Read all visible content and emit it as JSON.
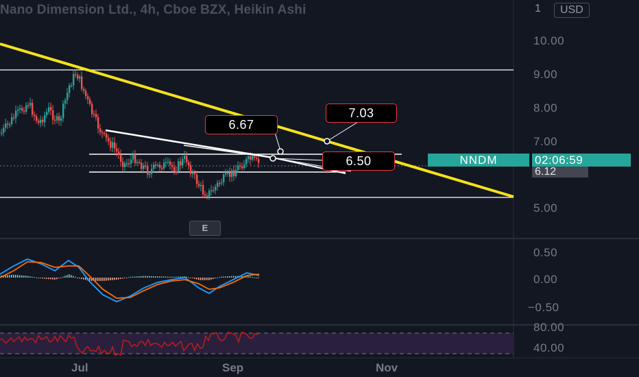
{
  "header": {
    "title": "Nano Dimension Ltd., 4h, Cboe BZX, Heikin Ashi",
    "scale_marker": "1",
    "currency": "USD"
  },
  "price_axis": {
    "labels": [
      "10.00",
      "9.00",
      "8.00",
      "7.00",
      "5.00"
    ]
  },
  "macd_axis": {
    "labels": [
      "0.50",
      "0.00",
      "−0.50"
    ]
  },
  "rsi_axis": {
    "labels": [
      "80.00",
      "40.00"
    ]
  },
  "time_axis": {
    "labels": [
      "Jul",
      "Sep",
      "Nov"
    ]
  },
  "symbol_tag": {
    "ticker": "NNDM",
    "countdown": "02:06:59",
    "last_price": "6.12"
  },
  "earnings_marker": "E",
  "annotations": {
    "callout_a": "6.67",
    "callout_b": "7.03",
    "callout_c": "6.50"
  },
  "colors": {
    "background": "#131722",
    "up": "#26a69a",
    "down": "#ef5350",
    "trendline": "#f5e21b",
    "macd": "#2196f3",
    "signal": "#ff6d00",
    "rsi": "#b71c1c",
    "rsi_band": "#2a1f3d"
  }
}
